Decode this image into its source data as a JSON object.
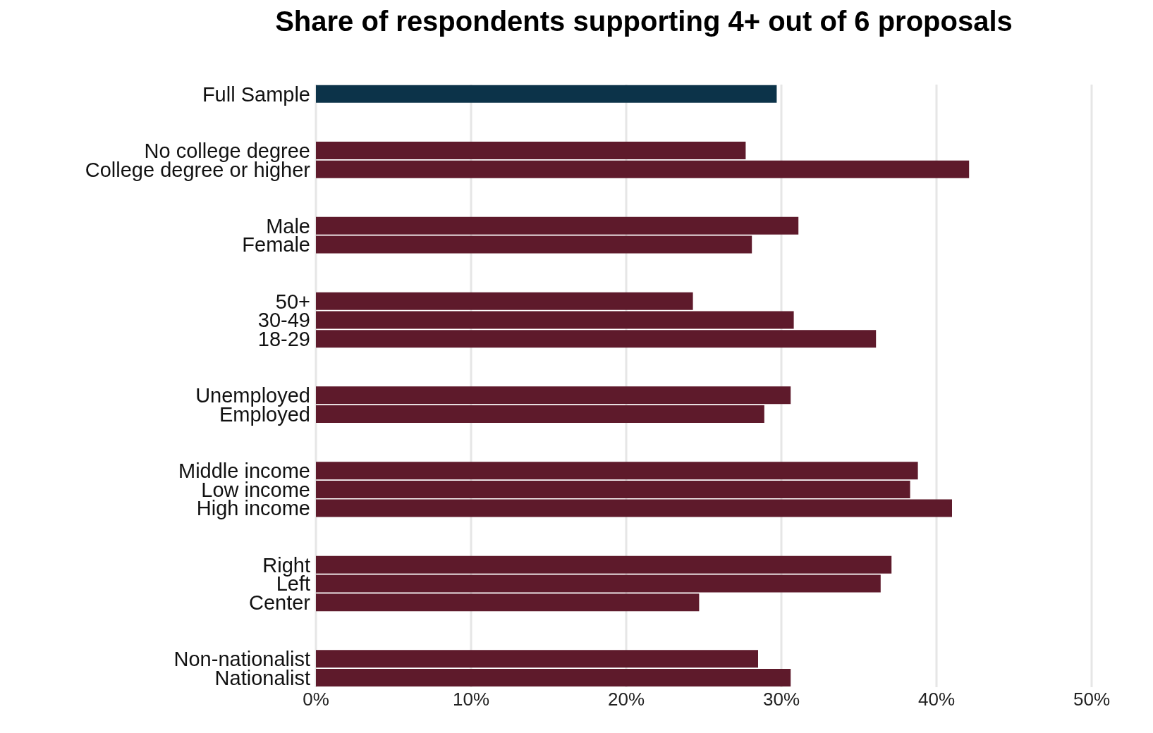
{
  "chart_data": {
    "type": "bar",
    "orientation": "horizontal",
    "title": "Share of respondents supporting 4+ out of 6 proposals",
    "categories": [
      "Full Sample",
      null,
      null,
      "No college degree",
      "College degree or higher",
      null,
      null,
      "Male",
      "Female",
      null,
      null,
      "50+",
      "30-49",
      "18-29",
      null,
      null,
      "Unemployed",
      "Employed",
      null,
      null,
      "Middle income",
      "Low income",
      "High income",
      null,
      null,
      "Right",
      "Left",
      "Center",
      null,
      null,
      "Non-nationalist",
      "Nationalist"
    ],
    "values": [
      29.7,
      null,
      null,
      27.7,
      42.1,
      null,
      null,
      31.1,
      28.1,
      null,
      null,
      24.3,
      30.8,
      36.1,
      null,
      null,
      30.6,
      28.9,
      null,
      null,
      38.8,
      38.3,
      41.0,
      null,
      null,
      37.1,
      36.4,
      24.7,
      null,
      null,
      28.5,
      30.6
    ],
    "colors": [
      "#0c3349",
      null,
      null,
      "#5e1a2b",
      "#5e1a2b",
      null,
      null,
      "#5e1a2b",
      "#5e1a2b",
      null,
      null,
      "#5e1a2b",
      "#5e1a2b",
      "#5e1a2b",
      null,
      null,
      "#5e1a2b",
      "#5e1a2b",
      null,
      null,
      "#5e1a2b",
      "#5e1a2b",
      "#5e1a2b",
      null,
      null,
      "#5e1a2b",
      "#5e1a2b",
      "#5e1a2b",
      null,
      null,
      "#5e1a2b",
      "#5e1a2b"
    ],
    "xlim": [
      0,
      50
    ],
    "xticks": [
      {
        "value": 0,
        "label": "0%"
      },
      {
        "value": 10,
        "label": "10%"
      },
      {
        "value": 20,
        "label": "20%"
      },
      {
        "value": 30,
        "label": "30%"
      },
      {
        "value": 40,
        "label": "40%"
      },
      {
        "value": 50,
        "label": "50%"
      }
    ],
    "grid": "x"
  }
}
